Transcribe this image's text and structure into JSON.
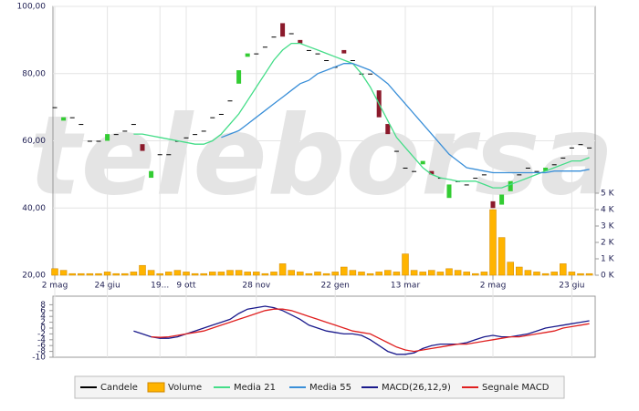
{
  "watermark": "teleborsa",
  "chart_data": [
    {
      "type": "candlestick",
      "categories": [
        "2 mag",
        null,
        null,
        null,
        null,
        null,
        "24 giu",
        null,
        null,
        null,
        null,
        null,
        "19...",
        null,
        null,
        "9 ott",
        null,
        null,
        null,
        null,
        null,
        null,
        null,
        "28 nov",
        null,
        null,
        null,
        null,
        null,
        null,
        null,
        null,
        "22 gen",
        null,
        null,
        null,
        null,
        null,
        null,
        null,
        "13 mar",
        null,
        null,
        null,
        null,
        null,
        null,
        null,
        null,
        null,
        "2 mag",
        null,
        null,
        null,
        null,
        null,
        null,
        null,
        null,
        "23 giu",
        null,
        null
      ],
      "ylim": [
        20,
        100
      ],
      "yticks": [
        {
          "value": 20,
          "label": "20,00"
        },
        {
          "value": 40,
          "label": "40,00"
        },
        {
          "value": 60,
          "label": "60,00"
        },
        {
          "value": 80,
          "label": "80,00"
        },
        {
          "value": 100,
          "label": "100,00"
        }
      ],
      "y2lim": [
        0,
        16.39
      ],
      "y2ticks": [
        {
          "value": 0,
          "label": "0 K"
        },
        {
          "value": 1,
          "label": "1 K"
        },
        {
          "value": 2,
          "label": "2 K"
        },
        {
          "value": 3,
          "label": "3 K"
        },
        {
          "value": 4,
          "label": "4 K"
        },
        {
          "value": 5,
          "label": "5 K"
        }
      ],
      "grid": true,
      "series": [
        {
          "name": "Candele",
          "type": "candlestick",
          "color": "#000000",
          "up_color": "#33cc33",
          "down_color": "#8b1a2b",
          "open": [
            70,
            66,
            67,
            65,
            60,
            60,
            60,
            62,
            63,
            65,
            59,
            49,
            56,
            56,
            60,
            61,
            62,
            63,
            67,
            68,
            72,
            77,
            85,
            86,
            88,
            91,
            95,
            92,
            90,
            87,
            86,
            84,
            82,
            87,
            84,
            80,
            80,
            75,
            65,
            57,
            52,
            51,
            53,
            51,
            49,
            43,
            48,
            47,
            49,
            50,
            42,
            41,
            45,
            50,
            52,
            51,
            51,
            53,
            55,
            58,
            59,
            58
          ],
          "close": [
            70,
            67,
            67,
            65,
            60,
            60,
            62,
            62,
            63,
            65,
            57,
            51,
            56,
            56,
            60,
            61,
            62,
            63,
            67,
            68,
            72,
            81,
            86,
            86,
            88,
            91,
            91,
            92,
            89,
            87,
            86,
            84,
            82,
            86,
            84,
            80,
            80,
            67,
            62,
            57,
            52,
            51,
            54,
            50,
            49,
            47,
            48,
            47,
            49,
            50,
            40,
            44,
            48,
            50,
            52,
            51,
            52,
            53,
            55,
            58,
            59,
            58
          ]
        },
        {
          "name": "Volume",
          "type": "bar",
          "axis": "y2",
          "color": "#ffb400",
          "values": [
            0.4,
            0.3,
            0.1,
            0.1,
            0.1,
            0.1,
            0.2,
            0.1,
            0.1,
            0.2,
            0.6,
            0.3,
            0.1,
            0.2,
            0.3,
            0.2,
            0.1,
            0.1,
            0.2,
            0.2,
            0.3,
            0.3,
            0.2,
            0.2,
            0.1,
            0.2,
            0.7,
            0.3,
            0.2,
            0.1,
            0.2,
            0.1,
            0.2,
            0.5,
            0.3,
            0.2,
            0.1,
            0.2,
            0.3,
            0.2,
            1.3,
            0.3,
            0.2,
            0.3,
            0.2,
            0.4,
            0.3,
            0.2,
            0.1,
            0.2,
            4.0,
            2.3,
            0.8,
            0.5,
            0.3,
            0.2,
            0.1,
            0.2,
            0.7,
            0.2,
            0.1,
            0.1
          ]
        },
        {
          "name": "Media 21",
          "type": "line",
          "color": "#44dd88",
          "values": [
            null,
            null,
            null,
            null,
            null,
            null,
            null,
            null,
            null,
            62,
            62,
            61.5,
            61,
            60.5,
            60,
            59.5,
            59,
            59,
            60,
            62,
            65,
            68,
            72,
            76,
            80,
            84,
            87,
            89,
            89,
            88,
            87,
            86,
            85,
            84,
            83,
            80,
            76,
            71,
            66,
            61,
            58,
            55,
            52,
            50,
            49,
            48.5,
            48,
            48,
            48,
            47,
            46,
            46,
            47,
            48,
            49,
            50,
            51,
            52,
            53,
            54,
            54,
            55
          ]
        },
        {
          "name": "Media 55",
          "type": "line",
          "color": "#3a8fd8",
          "values": [
            null,
            null,
            null,
            null,
            null,
            null,
            null,
            null,
            null,
            null,
            null,
            null,
            null,
            null,
            null,
            null,
            null,
            null,
            null,
            61,
            62,
            63,
            65,
            67,
            69,
            71,
            73,
            75,
            77,
            78,
            80,
            81,
            82,
            83,
            83,
            82,
            81,
            79,
            77,
            74,
            71,
            68,
            65,
            62,
            59,
            56,
            54,
            52,
            51.5,
            51,
            50.5,
            50.5,
            50.5,
            50.5,
            50.5,
            50.5,
            50.5,
            51,
            51,
            51,
            51,
            51.5
          ]
        }
      ]
    },
    {
      "type": "line",
      "ylim": [
        -10,
        10
      ],
      "yticks": [
        8,
        6,
        4,
        2,
        0,
        -2,
        -4,
        -6,
        -8,
        -10
      ],
      "series": [
        {
          "name": "MACD(26,12,9)",
          "color": "#1a1a8c",
          "values": [
            null,
            null,
            null,
            null,
            null,
            null,
            null,
            null,
            null,
            -1,
            -2,
            -3,
            -3.5,
            -3.5,
            -3,
            -2,
            -1,
            0,
            1,
            2,
            3,
            5,
            6.5,
            7,
            7.5,
            7,
            6,
            4.5,
            3,
            1,
            0,
            -1,
            -1.5,
            -2,
            -2,
            -2.5,
            -4,
            -6,
            -8,
            -9,
            -9,
            -8.5,
            -7,
            -6,
            -5.5,
            -5.5,
            -5.5,
            -5,
            -4,
            -3,
            -2.5,
            -3,
            -3,
            -2.5,
            -2,
            -1,
            0,
            0.5,
            1,
            1.5,
            2,
            2.5
          ]
        },
        {
          "name": "Segnale MACD",
          "color": "#e02020",
          "values": [
            null,
            null,
            null,
            null,
            null,
            null,
            null,
            null,
            null,
            null,
            null,
            -3,
            -3.2,
            -3,
            -2.5,
            -2,
            -1.5,
            -1,
            0,
            1,
            2,
            3,
            4,
            5,
            6,
            6.5,
            6.5,
            6,
            5,
            4,
            3,
            2,
            1,
            0,
            -1,
            -1.5,
            -2,
            -3.5,
            -5,
            -6.5,
            -7.5,
            -8,
            -7.5,
            -7,
            -6.5,
            -6,
            -5.5,
            -5.5,
            -5,
            -4.5,
            -4,
            -3.5,
            -3,
            -3,
            -2.5,
            -2,
            -1.5,
            -1,
            0,
            0.5,
            1,
            1.5
          ]
        }
      ]
    }
  ]
}
